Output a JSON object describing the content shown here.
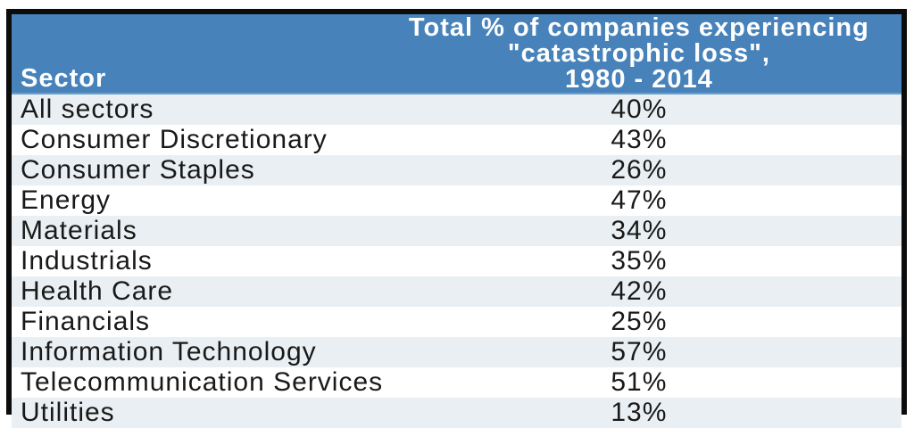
{
  "colors": {
    "header_bg": "#4783ba",
    "header_edge": "#6fa0ca",
    "header_text": "#ffffff",
    "stripe_bg": "#e9eff2",
    "row_bg": "#ffffff",
    "body_text": "#191919",
    "border": "#0c0c0c"
  },
  "header": {
    "sector_label": "Sector",
    "value_label_lines": [
      "Total % of companies experiencing",
      "\"catastrophic loss\",",
      "1980 - 2014"
    ]
  },
  "chart_data": {
    "type": "table",
    "title": "Total % of companies experiencing \"catastrophic loss\", 1980 - 2014",
    "columns": [
      "Sector",
      "Total % of companies experiencing \"catastrophic loss\", 1980 - 2014"
    ],
    "categories": [
      "All sectors",
      "Consumer Discretionary",
      "Consumer Staples",
      "Energy",
      "Materials",
      "Industrials",
      "Health Care",
      "Financials",
      "Information Technology",
      "Telecommunication Services",
      "Utilities"
    ],
    "values": [
      40,
      43,
      26,
      47,
      34,
      35,
      42,
      25,
      57,
      51,
      13
    ],
    "value_unit": "%",
    "layout": {
      "grid": false,
      "striped_rows": true,
      "stripe_start": "odd"
    }
  }
}
